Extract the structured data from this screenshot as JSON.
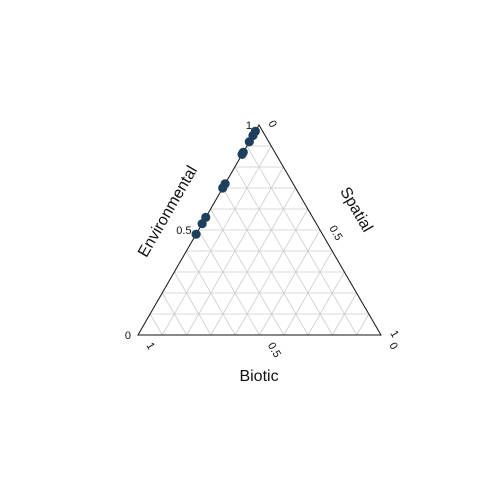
{
  "chart_data": {
    "type": "scatter",
    "subtype": "ternary",
    "title": "",
    "axes": {
      "left": {
        "label": "Environmental",
        "ticks": [
          {
            "value": 0,
            "label": "0"
          },
          {
            "value": 0.5,
            "label": "0.5"
          },
          {
            "value": 1,
            "label": "1"
          }
        ]
      },
      "right": {
        "label": "Spatial",
        "ticks": [
          {
            "value": 0,
            "label": "0"
          },
          {
            "value": 0.5,
            "label": "0.5"
          },
          {
            "value": 1,
            "label": "1"
          }
        ]
      },
      "bottom": {
        "label": "Biotic",
        "ticks": [
          {
            "value": 1,
            "label": "1"
          },
          {
            "value": 0.5,
            "label": "0.5"
          },
          {
            "value": 0,
            "label": "0"
          }
        ]
      }
    },
    "grid": true,
    "grid_step": 0.1,
    "marker_color": "#1f3f5e",
    "points": [
      {
        "environmental": 0.97,
        "spatial": 0.0,
        "biotic": 0.03
      },
      {
        "environmental": 0.95,
        "spatial": 0.0,
        "biotic": 0.05
      },
      {
        "environmental": 0.92,
        "spatial": 0.0,
        "biotic": 0.08
      },
      {
        "environmental": 0.87,
        "spatial": 0.0,
        "biotic": 0.13
      },
      {
        "environmental": 0.86,
        "spatial": 0.0,
        "biotic": 0.14
      },
      {
        "environmental": 0.72,
        "spatial": 0.0,
        "biotic": 0.28
      },
      {
        "environmental": 0.7,
        "spatial": 0.0,
        "biotic": 0.3
      },
      {
        "environmental": 0.56,
        "spatial": 0.0,
        "biotic": 0.44
      },
      {
        "environmental": 0.53,
        "spatial": 0.0,
        "biotic": 0.47
      },
      {
        "environmental": 0.48,
        "spatial": 0.0,
        "biotic": 0.52
      }
    ]
  }
}
